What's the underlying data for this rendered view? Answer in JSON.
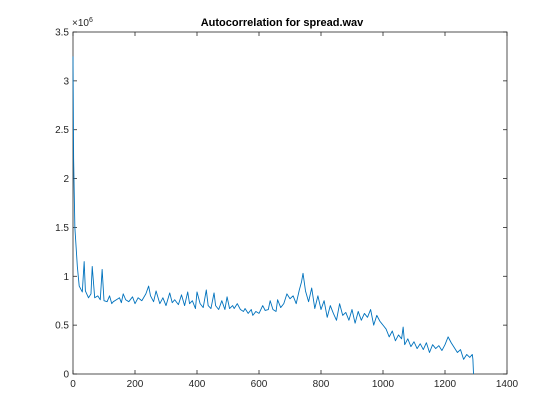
{
  "chart_data": {
    "type": "line",
    "title": "Autocorrelation for spread.wav",
    "xlabel": "",
    "ylabel": "",
    "xlim": [
      0,
      1400
    ],
    "ylim": [
      0,
      3.5
    ],
    "y_multiplier_base": "×10",
    "y_multiplier_exponent": "6",
    "x_ticks": [
      0,
      200,
      400,
      600,
      800,
      1000,
      1200,
      1400
    ],
    "y_ticks": [
      0,
      0.5,
      1,
      1.5,
      2,
      2.5,
      3,
      3.5
    ],
    "grid": false,
    "line_color": "#0072BD",
    "series": [
      {
        "x": [
          0,
          2,
          4,
          6,
          10,
          14,
          20,
          30,
          36,
          40,
          50,
          58,
          62,
          70,
          80,
          88,
          94,
          100,
          110,
          118,
          125,
          130,
          140,
          150,
          156,
          162,
          170,
          180,
          192,
          200,
          210,
          222,
          235,
          244,
          250,
          260,
          268,
          280,
          290,
          300,
          312,
          320,
          328,
          340,
          350,
          360,
          370,
          376,
          385,
          395,
          400,
          410,
          420,
          430,
          436,
          445,
          455,
          460,
          470,
          480,
          490,
          497,
          505,
          515,
          520,
          530,
          540,
          550,
          555,
          565,
          575,
          580,
          590,
          600,
          612,
          620,
          630,
          636,
          645,
          655,
          660,
          670,
          680,
          690,
          700,
          710,
          720,
          730,
          737,
          742,
          750,
          760,
          770,
          780,
          790,
          800,
          810,
          820,
          830,
          840,
          850,
          860,
          870,
          880,
          890,
          900,
          910,
          920,
          930,
          940,
          950,
          960,
          970,
          980,
          990,
          1000,
          1010,
          1020,
          1030,
          1040,
          1050,
          1060,
          1065,
          1070,
          1080,
          1090,
          1100,
          1110,
          1120,
          1130,
          1140,
          1150,
          1160,
          1170,
          1180,
          1190,
          1200,
          1210,
          1220,
          1230,
          1240,
          1250,
          1260,
          1270,
          1280,
          1288,
          1290,
          1292
        ],
        "values": [
          3.25,
          2.2,
          1.85,
          1.5,
          1.3,
          1.1,
          0.9,
          0.84,
          1.15,
          0.85,
          0.78,
          0.82,
          1.1,
          0.78,
          0.8,
          0.76,
          1.07,
          0.75,
          0.74,
          0.8,
          0.72,
          0.74,
          0.76,
          0.78,
          0.73,
          0.82,
          0.76,
          0.74,
          0.79,
          0.72,
          0.78,
          0.75,
          0.82,
          0.9,
          0.8,
          0.74,
          0.85,
          0.72,
          0.78,
          0.7,
          0.83,
          0.73,
          0.76,
          0.71,
          0.81,
          0.7,
          0.84,
          0.72,
          0.75,
          0.67,
          0.84,
          0.72,
          0.68,
          0.86,
          0.7,
          0.67,
          0.83,
          0.7,
          0.66,
          0.75,
          0.66,
          0.79,
          0.67,
          0.7,
          0.67,
          0.72,
          0.66,
          0.64,
          0.67,
          0.62,
          0.66,
          0.6,
          0.64,
          0.62,
          0.7,
          0.65,
          0.66,
          0.75,
          0.66,
          0.64,
          0.76,
          0.68,
          0.72,
          0.82,
          0.77,
          0.8,
          0.72,
          0.86,
          0.94,
          1.03,
          0.85,
          0.74,
          0.88,
          0.67,
          0.8,
          0.66,
          0.75,
          0.58,
          0.7,
          0.62,
          0.55,
          0.72,
          0.6,
          0.63,
          0.55,
          0.66,
          0.52,
          0.64,
          0.55,
          0.62,
          0.58,
          0.66,
          0.5,
          0.6,
          0.54,
          0.5,
          0.46,
          0.38,
          0.44,
          0.34,
          0.4,
          0.36,
          0.48,
          0.3,
          0.36,
          0.28,
          0.33,
          0.26,
          0.31,
          0.25,
          0.32,
          0.22,
          0.3,
          0.26,
          0.29,
          0.24,
          0.3,
          0.38,
          0.32,
          0.27,
          0.22,
          0.25,
          0.15,
          0.2,
          0.17,
          0.2,
          0.15,
          0.0
        ]
      }
    ]
  }
}
